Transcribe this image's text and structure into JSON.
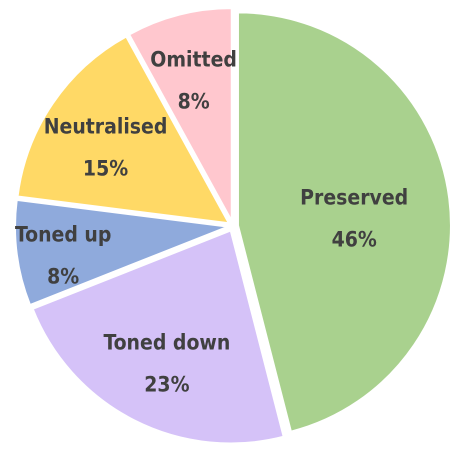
{
  "chart_data": {
    "type": "pie",
    "slices": [
      {
        "label": "Preserved",
        "value": 46,
        "display": "46%",
        "color": "#a9d18e"
      },
      {
        "label": "Toned down",
        "value": 23,
        "display": "23%",
        "color": "#d5c2f8"
      },
      {
        "label": "Toned up",
        "value": 8,
        "display": "8%",
        "color": "#8faadc"
      },
      {
        "label": "Neutralised",
        "value": 15,
        "display": "15%",
        "color": "#ffd966"
      },
      {
        "label": "Omitted",
        "value": 8,
        "display": "8%",
        "color": "#ffc7ce"
      }
    ],
    "start_angle_deg": 0,
    "direction": "clockwise",
    "legend": "none",
    "labels_inside": true
  }
}
